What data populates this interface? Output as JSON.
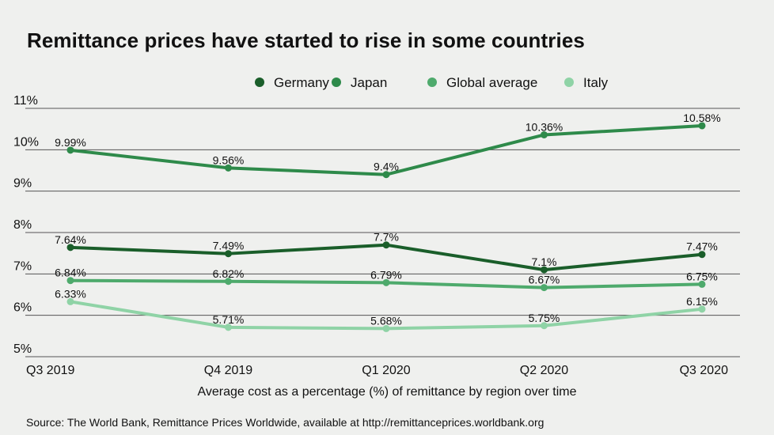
{
  "chart_data": {
    "type": "line",
    "title": "Remittance prices have started to rise in some countries",
    "categories": [
      "Q3 2019",
      "Q4 2019",
      "Q1 2020",
      "Q2 2020",
      "Q3 2020"
    ],
    "ylim": [
      5,
      11
    ],
    "yticks": [
      5,
      6,
      7,
      8,
      9,
      10,
      11
    ],
    "ytick_labels": [
      "5%",
      "6%",
      "7%",
      "8%",
      "9%",
      "10%",
      "11%"
    ],
    "xlabel": "Average cost as a percentage (%) of remittance by region over time",
    "ylabel": "",
    "grid": true,
    "legend_position": "top-right",
    "series": [
      {
        "name": "Germany",
        "color": "#1a5e2a",
        "values": [
          7.64,
          7.49,
          7.7,
          7.1,
          7.47
        ],
        "labels": [
          "7.64%",
          "7.49%",
          "7.7%",
          "7.1%",
          "7.47%"
        ]
      },
      {
        "name": "Japan",
        "color": "#2e8a4a",
        "values": [
          9.99,
          9.56,
          9.4,
          10.36,
          10.58
        ],
        "labels": [
          "9.99%",
          "9.56%",
          "9.4%",
          "10.36%",
          "10.58%"
        ]
      },
      {
        "name": "Global average",
        "color": "#4eaa6c",
        "values": [
          6.84,
          6.82,
          6.79,
          6.67,
          6.75
        ],
        "labels": [
          "6.84%",
          "6.82%",
          "6.79%",
          "6.67%",
          "6.75%"
        ]
      },
      {
        "name": "Italy",
        "color": "#8fd3a6",
        "values": [
          6.33,
          5.71,
          5.68,
          5.75,
          6.15
        ],
        "labels": [
          "6.33%",
          "5.71%",
          "5.68%",
          "5.75%",
          "6.15%"
        ]
      }
    ]
  },
  "source": "Source: The World Bank, Remittance Prices Worldwide, available at http://remittanceprices.worldbank.org",
  "colors": {
    "background": "#eff0ee",
    "grid": "#555555",
    "text": "#111111"
  }
}
